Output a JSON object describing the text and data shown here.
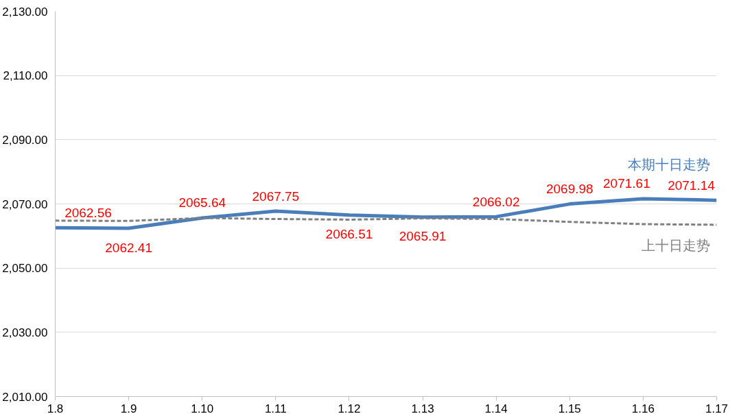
{
  "chart_data": {
    "type": "line",
    "categories": [
      "1.8",
      "1.9",
      "1.10",
      "1.11",
      "1.12",
      "1.13",
      "1.14",
      "1.15",
      "1.16",
      "1.17"
    ],
    "series": [
      {
        "name": "本期十日走势",
        "color": "#4a7ebb",
        "line_style": "solid",
        "values": [
          2062.56,
          2062.41,
          2065.64,
          2067.75,
          2066.51,
          2065.91,
          2066.02,
          2069.98,
          2071.61,
          2071.14
        ],
        "value_labels": [
          "2062.56",
          "2062.41",
          "2065.64",
          "2067.75",
          "2066.51",
          "2065.91",
          "2066.02",
          "2069.98",
          "2071.61",
          "2071.14"
        ]
      },
      {
        "name": "上十日走势",
        "color": "#808080",
        "line_style": "dashed",
        "values": [
          2064.8,
          2064.7,
          2065.6,
          2065.3,
          2065.1,
          2065.5,
          2065.3,
          2064.4,
          2063.7,
          2063.5
        ]
      }
    ],
    "ylim": [
      2010,
      2130
    ],
    "yticks": [
      {
        "value": 2010,
        "label": "2,010.00"
      },
      {
        "value": 2030,
        "label": "2,030.00"
      },
      {
        "value": 2050,
        "label": "2,050.00"
      },
      {
        "value": 2070,
        "label": "2,070.00"
      },
      {
        "value": 2090,
        "label": "2,090.00"
      },
      {
        "value": 2110,
        "label": "2,110.00"
      },
      {
        "value": 2130,
        "label": "2,130.00"
      }
    ],
    "grid": "y",
    "marker": "none"
  }
}
